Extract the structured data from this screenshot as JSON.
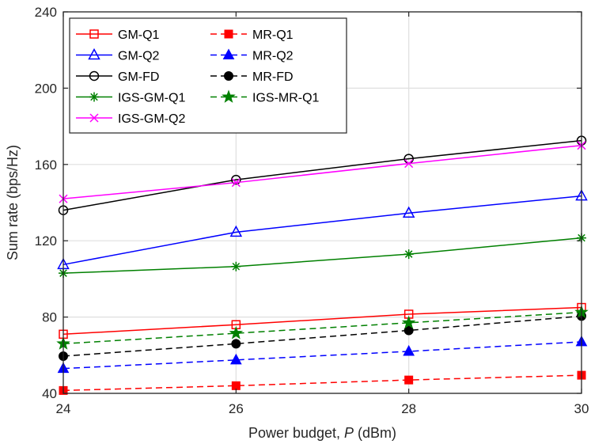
{
  "chart_data": {
    "type": "line",
    "title": "",
    "xlabel_prefix": "Power budget, ",
    "xlabel_var": "P",
    "xlabel_suffix": " (dBm)",
    "ylabel": "Sum rate (bps/Hz)",
    "x": [
      24,
      26,
      28,
      30
    ],
    "xlim": [
      24,
      30
    ],
    "ylim": [
      40,
      240
    ],
    "xticks": [
      24,
      26,
      28,
      30
    ],
    "yticks": [
      40,
      80,
      120,
      160,
      200,
      240
    ],
    "grid": true,
    "legend_position": "top-left",
    "series": [
      {
        "name": "GM-Q1",
        "color": "#ff0000",
        "dash": "solid",
        "marker": "square-open",
        "values": [
          71,
          76,
          81.5,
          85
        ]
      },
      {
        "name": "MR-Q1",
        "color": "#ff0000",
        "dash": "dashed",
        "marker": "square-filled",
        "values": [
          41.5,
          44,
          47,
          49.5
        ]
      },
      {
        "name": "GM-Q2",
        "color": "#0000ff",
        "dash": "solid",
        "marker": "triangle-open",
        "values": [
          107.5,
          124.5,
          134.5,
          143.5
        ]
      },
      {
        "name": "MR-Q2",
        "color": "#0000ff",
        "dash": "dashed",
        "marker": "triangle-filled",
        "values": [
          53,
          57.5,
          62,
          67
        ]
      },
      {
        "name": "GM-FD",
        "color": "#000000",
        "dash": "solid",
        "marker": "circle-open",
        "values": [
          136,
          152,
          163,
          172.5
        ]
      },
      {
        "name": "MR-FD",
        "color": "#000000",
        "dash": "dashed",
        "marker": "circle-filled",
        "values": [
          59.5,
          66,
          73,
          80.5
        ]
      },
      {
        "name": "IGS-GM-Q1",
        "color": "#008000",
        "dash": "solid",
        "marker": "asterisk",
        "values": [
          103,
          106.5,
          113,
          121.5
        ]
      },
      {
        "name": "IGS-MR-Q1",
        "color": "#008000",
        "dash": "dashed",
        "marker": "star",
        "values": [
          66,
          71.5,
          77,
          82.5
        ]
      },
      {
        "name": "IGS-GM-Q2",
        "color": "#ff00ff",
        "dash": "solid",
        "marker": "cross",
        "values": [
          142,
          150.5,
          160.5,
          170
        ]
      }
    ]
  }
}
